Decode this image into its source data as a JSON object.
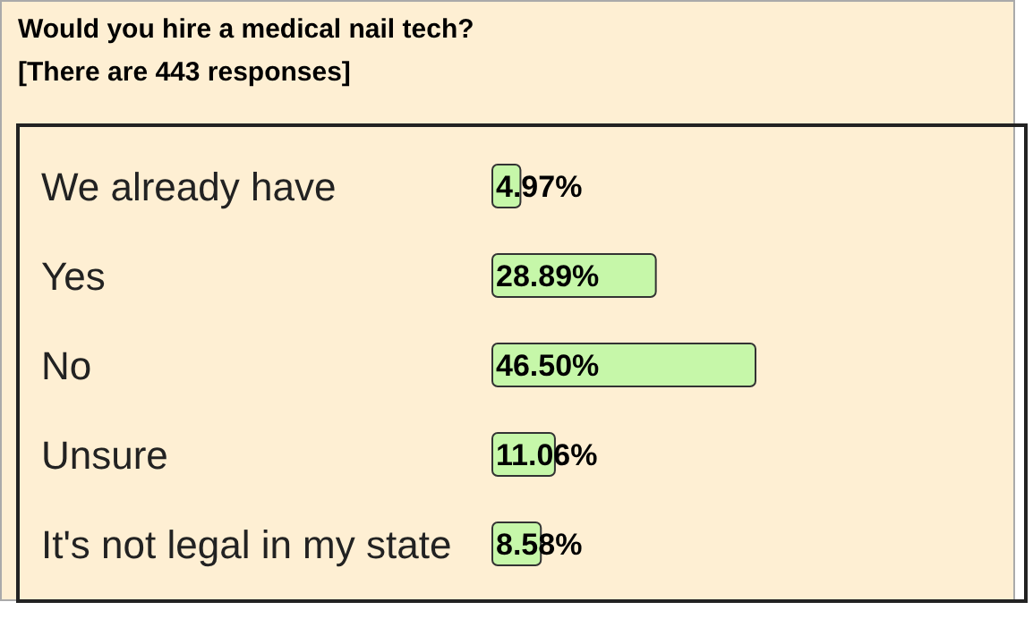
{
  "chart_data": {
    "type": "bar",
    "orientation": "horizontal",
    "title": "Would you hire a medical nail tech?",
    "subtitle": "[There are 443 responses]",
    "categories": [
      "We already have",
      "Yes",
      "No",
      "Unsure",
      "It's not legal in my state"
    ],
    "values": [
      4.97,
      28.89,
      46.5,
      11.06,
      8.58
    ],
    "value_labels": [
      "4.97%",
      "28.89%",
      "46.50%",
      "11.06%",
      "8.58%"
    ],
    "color": "#c6f7a9",
    "grid": false,
    "legend": false
  }
}
